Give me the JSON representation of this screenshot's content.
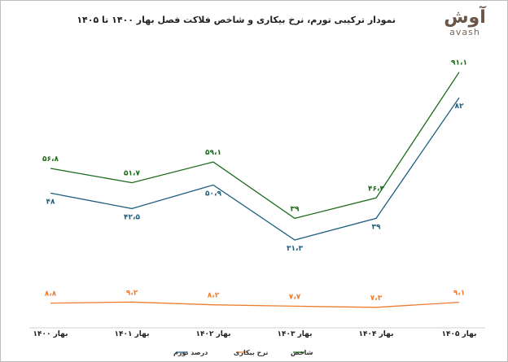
{
  "title": "نمودار ترکیبی تورم، نرخ بیکاری و شاخص فلاکت فصل بهار ۱۴۰۰ تا ۱۴۰۵",
  "logo": {
    "fa": "آوش",
    "en": "avash",
    "color": "#6a5548"
  },
  "chart_data": {
    "type": "line",
    "categories": [
      "بهار ۱۴۰۰",
      "بهار ۱۴۰۱",
      "بهار ۱۴۰۲",
      "بهار ۱۴۰۳",
      "بهار ۱۴۰۴",
      "بهار ۱۴۰۵"
    ],
    "series": [
      {
        "name": "شاخص",
        "color": "#1a6b1a",
        "values": [
          56.8,
          51.7,
          59.1,
          39,
          46.3,
          91.1
        ],
        "labels": [
          "۵۶،۸",
          "۵۱،۷",
          "۵۹،۱",
          "۳۹",
          "۴۶،۳",
          "۹۱،۱"
        ]
      },
      {
        "name": "نرخ بیکاری",
        "color": "#ed7d31",
        "values": [
          8.8,
          9.2,
          8.2,
          7.7,
          7.3,
          9.1
        ],
        "labels": [
          "۸،۸",
          "۹،۲",
          "۸،۲",
          "۷،۷",
          "۷،۳",
          "۹،۱"
        ]
      },
      {
        "name": "درصد تورم",
        "color": "#1f5f7f",
        "values": [
          48,
          42.5,
          50.9,
          31.3,
          39,
          82
        ],
        "labels": [
          "۴۸",
          "۴۲،۵",
          "۵۰،۹",
          "۳۱،۳",
          "۳۹",
          "۸۲"
        ]
      }
    ],
    "legend_position": "bottom",
    "grid": false
  }
}
